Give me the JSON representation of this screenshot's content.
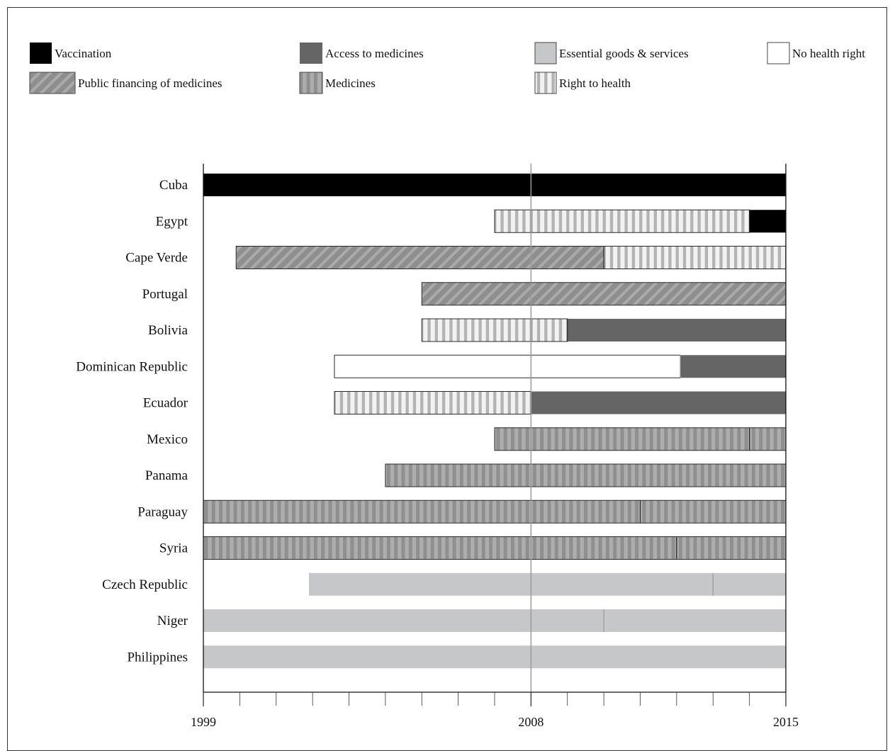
{
  "chart_data": {
    "type": "timeline",
    "x_range": [
      1999,
      2015
    ],
    "x_tick_labels": [
      "1999",
      "2008",
      "2015"
    ],
    "reference_line": 2008,
    "legend_position": "top",
    "categories": {
      "vaccination": {
        "label": "Vaccination",
        "color": "#000000",
        "pattern": "solid"
      },
      "access": {
        "label": "Access to medicines",
        "color": "#656565",
        "pattern": "solid"
      },
      "essential": {
        "label": "Essential goods & services",
        "color": "#c6c7c8",
        "pattern": "solid"
      },
      "none": {
        "label": "No health right",
        "color": "#ffffff",
        "pattern": "solid"
      },
      "public_fin": {
        "label": "Public financing of medicines",
        "color": "#9a9a9a",
        "pattern": "diagonal"
      },
      "medicines": {
        "label": "Medicines",
        "color": "#9a9a9a",
        "pattern": "vertical"
      },
      "right": {
        "label": "Right to health",
        "color": "#efefef",
        "pattern": "vertical-light"
      }
    },
    "legend_order": [
      [
        "vaccination",
        "access",
        "essential",
        "none"
      ],
      [
        "public_fin",
        "medicines",
        "right"
      ]
    ],
    "rows": [
      {
        "country": "Cuba",
        "segments": [
          {
            "start": 1999,
            "end": 2015,
            "cat": "vaccination"
          }
        ]
      },
      {
        "country": "Egypt",
        "segments": [
          {
            "start": 2007,
            "end": 2014,
            "cat": "right"
          },
          {
            "start": 2014,
            "end": 2015,
            "cat": "vaccination"
          }
        ]
      },
      {
        "country": "Cape Verde",
        "segments": [
          {
            "start": 1999.9,
            "end": 2010,
            "cat": "public_fin"
          },
          {
            "start": 2010,
            "end": 2015,
            "cat": "right"
          }
        ]
      },
      {
        "country": "Portugal",
        "segments": [
          {
            "start": 2005,
            "end": 2015,
            "cat": "public_fin"
          }
        ]
      },
      {
        "country": "Bolivia",
        "segments": [
          {
            "start": 2005,
            "end": 2009,
            "cat": "right"
          },
          {
            "start": 2009,
            "end": 2015,
            "cat": "access"
          }
        ]
      },
      {
        "country": "Dominican Republic",
        "segments": [
          {
            "start": 2002.6,
            "end": 2012.1,
            "cat": "none"
          },
          {
            "start": 2012.1,
            "end": 2015,
            "cat": "access"
          }
        ]
      },
      {
        "country": "Ecuador",
        "segments": [
          {
            "start": 2002.6,
            "end": 2008,
            "cat": "right"
          },
          {
            "start": 2008,
            "end": 2015,
            "cat": "access"
          }
        ]
      },
      {
        "country": "Mexico",
        "segments": [
          {
            "start": 2007,
            "end": 2014,
            "cat": "medicines"
          },
          {
            "start": 2014,
            "end": 2015,
            "cat": "medicines"
          }
        ]
      },
      {
        "country": "Panama",
        "segments": [
          {
            "start": 2004,
            "end": 2015,
            "cat": "medicines"
          }
        ]
      },
      {
        "country": "Paraguay",
        "segments": [
          {
            "start": 1999,
            "end": 2011,
            "cat": "medicines"
          },
          {
            "start": 2011,
            "end": 2015,
            "cat": "medicines"
          }
        ]
      },
      {
        "country": "Syria",
        "segments": [
          {
            "start": 1999,
            "end": 2012,
            "cat": "medicines"
          },
          {
            "start": 2012,
            "end": 2015,
            "cat": "medicines"
          }
        ]
      },
      {
        "country": "Czech Republic",
        "segments": [
          {
            "start": 2001.9,
            "end": 2013,
            "cat": "essential"
          },
          {
            "start": 2013,
            "end": 2015,
            "cat": "essential"
          }
        ]
      },
      {
        "country": "Niger",
        "segments": [
          {
            "start": 1999,
            "end": 2010,
            "cat": "essential"
          },
          {
            "start": 2010,
            "end": 2015,
            "cat": "essential"
          }
        ]
      },
      {
        "country": "Philippines",
        "segments": [
          {
            "start": 1999,
            "end": 2015,
            "cat": "essential"
          }
        ]
      }
    ]
  }
}
